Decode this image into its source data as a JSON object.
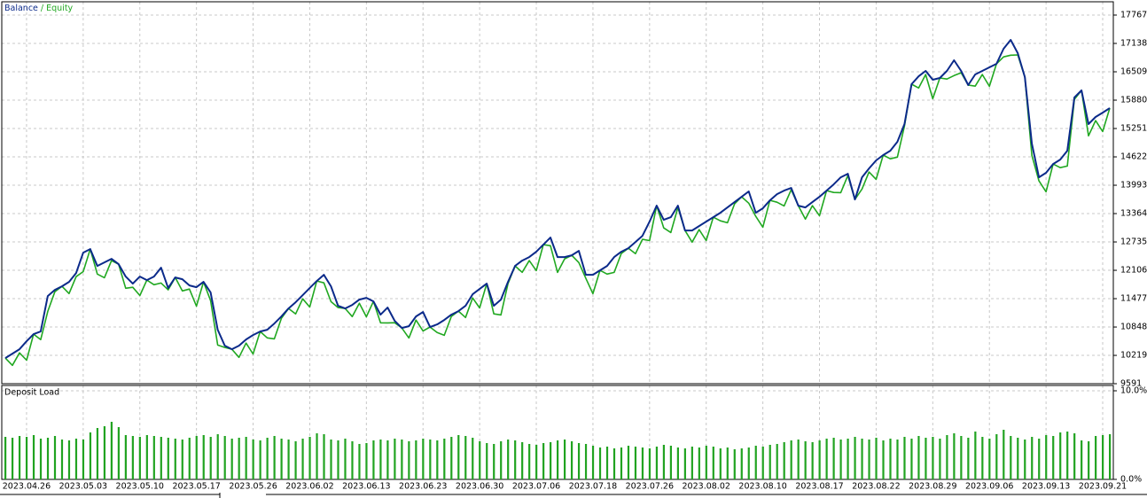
{
  "chart_data": [
    {
      "type": "line",
      "legend_separator": " / ",
      "categories": [
        null,
        null,
        null,
        "2023.04.26",
        null,
        null,
        null,
        null,
        null,
        null,
        null,
        "2023.05.03",
        null,
        null,
        null,
        null,
        null,
        null,
        null,
        "2023.05.10",
        null,
        null,
        null,
        null,
        null,
        null,
        null,
        "2023.05.17",
        null,
        null,
        null,
        null,
        null,
        null,
        null,
        "2023.05.26",
        null,
        null,
        null,
        null,
        null,
        null,
        null,
        "2023.06.02",
        null,
        null,
        null,
        null,
        null,
        null,
        null,
        "2023.06.13",
        null,
        null,
        null,
        null,
        null,
        null,
        null,
        "2023.06.23",
        null,
        null,
        null,
        null,
        null,
        null,
        null,
        "2023.06.30",
        null,
        null,
        null,
        null,
        null,
        null,
        null,
        "2023.07.06",
        null,
        null,
        null,
        null,
        null,
        null,
        null,
        "2023.07.18",
        null,
        null,
        null,
        null,
        null,
        null,
        null,
        "2023.07.26",
        null,
        null,
        null,
        null,
        null,
        null,
        null,
        "2023.08.02",
        null,
        null,
        null,
        null,
        null,
        null,
        null,
        "2023.08.10",
        null,
        null,
        null,
        null,
        null,
        null,
        null,
        "2023.08.17",
        null,
        null,
        null,
        null,
        null,
        null,
        null,
        "2023.08.22",
        null,
        null,
        null,
        null,
        null,
        null,
        null,
        "2023.08.29",
        null,
        null,
        null,
        null,
        null,
        null,
        null,
        "2023.09.06",
        null,
        null,
        null,
        null,
        null,
        null,
        null,
        "2023.09.13",
        null,
        null,
        null,
        null,
        null,
        null,
        null,
        "2023.09.21",
        null
      ],
      "series": [
        {
          "name": "Equity",
          "color": "#21a821",
          "values": [
            10159,
            9997,
            10275,
            10112,
            10689,
            10568,
            11195,
            11632,
            11751,
            11589,
            11966,
            12078,
            12577,
            12023,
            11942,
            12320,
            12243,
            11707,
            11730,
            11547,
            11889,
            11787,
            11824,
            11672,
            11948,
            11648,
            11691,
            11311,
            11849,
            11433,
            10448,
            10394,
            10355,
            10174,
            10491,
            10250,
            10748,
            10608,
            10585,
            11043,
            11260,
            11137,
            11474,
            11292,
            11869,
            11827,
            11411,
            11279,
            11260,
            11078,
            11376,
            11075,
            11417,
            10942,
            10939,
            10944,
            10827,
            10606,
            11003,
            10761,
            10847,
            10726,
            10664,
            11082,
            11201,
            11059,
            11494,
            11272,
            11810,
            11139,
            11116,
            11809,
            12203,
            12061,
            12320,
            12098,
            12675,
            12652,
            12060,
            12360,
            12439,
            12277,
            11927,
            11587,
            12105,
            12023,
            12060,
            12478,
            12596,
            12474,
            12792,
            12766,
            13540,
            13046,
            12945,
            13500,
            12990,
            12730,
            13008,
            12766,
            13285,
            13203,
            13161,
            13579,
            13737,
            13595,
            13303,
            13061,
            13658,
            13616,
            13534,
            13893,
            13540,
            13241,
            13539,
            13317,
            13874,
            13832,
            13829,
            14208,
            13678,
            13909,
            14286,
            14123,
            14661,
            14579,
            14616,
            15309,
            16234,
            16150,
            16448,
            15912,
            16371,
            16348,
            16424,
            16488,
            16214,
            16190,
            16448,
            16187,
            16686,
            16840,
            16877,
            16882,
            16391,
            14656,
            14089,
            13848,
            14464,
            14382,
            14419,
            15899,
            16096,
            15089,
            15426,
            15184,
            15703
          ]
        },
        {
          "name": "Balance",
          "color": "#0b2a8a",
          "values": [
            10159,
            10257,
            10355,
            10532,
            10689,
            10748,
            11535,
            11672,
            11751,
            11849,
            12046,
            12498,
            12577,
            12203,
            12282,
            12360,
            12243,
            11967,
            11810,
            11967,
            11889,
            11967,
            12164,
            11712,
            11948,
            11908,
            11771,
            11731,
            11849,
            11613,
            10788,
            10434,
            10355,
            10434,
            10571,
            10670,
            10748,
            10788,
            10925,
            11083,
            11260,
            11397,
            11554,
            11712,
            11869,
            12007,
            11751,
            11319,
            11260,
            11338,
            11456,
            11495,
            11417,
            11122,
            11279,
            10984,
            10827,
            10866,
            11083,
            11181,
            10847,
            10906,
            11004,
            11122,
            11201,
            11319,
            11574,
            11692,
            11810,
            11319,
            11456,
            11849,
            12203,
            12321,
            12400,
            12518,
            12675,
            12832,
            12400,
            12400,
            12439,
            12537,
            12007,
            12007,
            12105,
            12203,
            12400,
            12518,
            12596,
            12734,
            12872,
            13186,
            13540,
            13226,
            13285,
            13540,
            12990,
            12990,
            13088,
            13186,
            13285,
            13383,
            13501,
            13619,
            13737,
            13855,
            13383,
            13481,
            13658,
            13796,
            13874,
            13933,
            13540,
            13501,
            13619,
            13737,
            13874,
            14012,
            14169,
            14248,
            13678,
            14169,
            14366,
            14543,
            14661,
            14759,
            14956,
            15349,
            16234,
            16410,
            16528,
            16332,
            16371,
            16528,
            16764,
            16528,
            16214,
            16450,
            16528,
            16607,
            16686,
            17020,
            17217,
            16922,
            16391,
            14916,
            14169,
            14268,
            14464,
            14562,
            14759,
            15939,
            16096,
            15349,
            15506,
            15604,
            15703
          ]
        }
      ],
      "ylim": [
        9591,
        18062
      ],
      "yticks": [
        9591,
        10219,
        10848,
        11477,
        12106,
        12735,
        13364,
        13993,
        14622,
        15251,
        15880,
        16509,
        17138,
        17767
      ],
      "grid": true
    },
    {
      "type": "bar",
      "title": "Deposit Load",
      "color": "#21a321",
      "values": [
        4.8,
        4.7,
        4.9,
        4.8,
        5.0,
        4.6,
        4.7,
        4.9,
        4.5,
        4.4,
        4.6,
        4.5,
        5.3,
        5.8,
        6.0,
        6.5,
        5.9,
        5.0,
        4.9,
        4.8,
        5.0,
        4.9,
        4.8,
        4.7,
        4.6,
        4.5,
        4.7,
        4.9,
        5.0,
        4.8,
        5.1,
        4.9,
        4.6,
        4.7,
        4.8,
        4.5,
        4.4,
        4.7,
        4.9,
        4.6,
        4.5,
        4.3,
        4.6,
        4.8,
        5.2,
        5.1,
        4.5,
        4.4,
        4.6,
        4.3,
        4.0,
        4.1,
        4.4,
        4.5,
        4.4,
        4.6,
        4.5,
        4.3,
        4.4,
        4.6,
        4.5,
        4.4,
        4.6,
        4.8,
        5.0,
        4.9,
        4.7,
        4.3,
        4.1,
        4.0,
        4.3,
        4.5,
        4.4,
        4.2,
        4.0,
        3.9,
        4.1,
        4.2,
        4.4,
        4.5,
        4.3,
        4.1,
        4.0,
        3.8,
        3.6,
        3.7,
        3.5,
        3.6,
        3.8,
        3.7,
        3.6,
        3.5,
        3.7,
        3.9,
        3.8,
        3.6,
        3.5,
        3.7,
        3.6,
        3.8,
        3.7,
        3.5,
        3.6,
        3.4,
        3.5,
        3.6,
        3.8,
        3.7,
        3.9,
        4.0,
        4.2,
        4.4,
        4.5,
        4.3,
        4.2,
        4.4,
        4.6,
        4.7,
        4.5,
        4.6,
        4.8,
        4.6,
        4.5,
        4.7,
        4.4,
        4.6,
        4.5,
        4.8,
        4.6,
        4.9,
        4.7,
        4.8,
        4.6,
        5.0,
        5.2,
        4.9,
        4.7,
        5.4,
        4.8,
        4.6,
        5.1,
        5.6,
        4.9,
        4.7,
        4.5,
        4.8,
        4.6,
        5.0,
        4.9,
        5.3,
        5.4,
        5.2,
        4.4,
        4.3,
        4.9,
        5.0,
        5.1
      ],
      "ylim": [
        0,
        10.6
      ],
      "yticks": [
        {
          "value": 0,
          "label": "0.0%"
        },
        {
          "value": 10,
          "label": "10.0%"
        }
      ],
      "grid": true
    }
  ]
}
